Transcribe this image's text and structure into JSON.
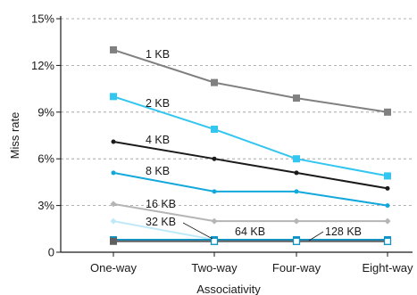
{
  "chart_data": {
    "type": "line",
    "xlabel": "Associativity",
    "ylabel": "Miss rate",
    "categories": [
      "One-way",
      "Two-way",
      "Four-way",
      "Eight-way"
    ],
    "ylim": [
      0,
      15
    ],
    "yticks": [
      "0",
      "3%",
      "6%",
      "9%",
      "12%",
      "15%"
    ],
    "grid": "dashed horizontal",
    "series": [
      {
        "name": "1 KB",
        "values": [
          13.0,
          10.9,
          9.9,
          9.0
        ],
        "color": "#808080",
        "marker": "square"
      },
      {
        "name": "2 KB",
        "values": [
          10.0,
          7.9,
          6.0,
          4.9
        ],
        "color": "#33c6f0",
        "marker": "square"
      },
      {
        "name": "4 KB",
        "values": [
          7.1,
          6.0,
          5.1,
          4.1
        ],
        "color": "#1a1a1a",
        "marker": "dot"
      },
      {
        "name": "8 KB",
        "values": [
          5.1,
          3.9,
          3.9,
          3.0
        ],
        "color": "#12a8dc",
        "marker": "dot"
      },
      {
        "name": "16 KB",
        "values": [
          3.1,
          2.0,
          2.0,
          2.0
        ],
        "color": "#b5b5b5",
        "marker": "diamond"
      },
      {
        "name": "32 KB",
        "values": [
          2.0,
          0.8,
          0.8,
          0.8
        ],
        "color": "#bfe9f9",
        "marker": "diamond"
      },
      {
        "name": "64 KB",
        "values": [
          0.8,
          0.8,
          0.8,
          0.8
        ],
        "color": "#0c94c8",
        "marker": "square"
      },
      {
        "name": "128 KB",
        "values": [
          0.7,
          0.7,
          0.7,
          0.7
        ],
        "color": "#606060",
        "marker": "square"
      }
    ]
  }
}
